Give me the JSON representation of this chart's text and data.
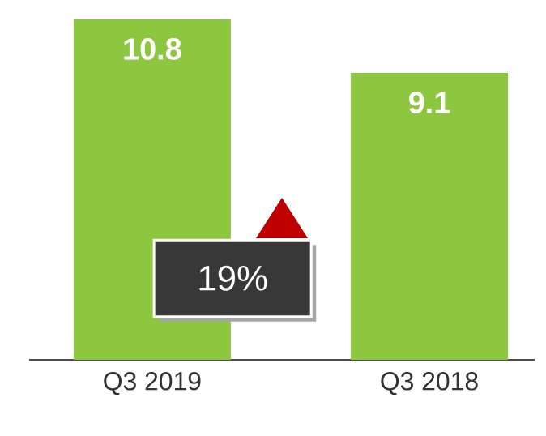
{
  "chart_data": {
    "type": "bar",
    "categories": [
      "Q3 2019",
      "Q3 2018"
    ],
    "values": [
      10.8,
      9.1
    ],
    "color": "#8dc63f",
    "data_labels": true,
    "annotations": [
      "19%"
    ]
  }
}
